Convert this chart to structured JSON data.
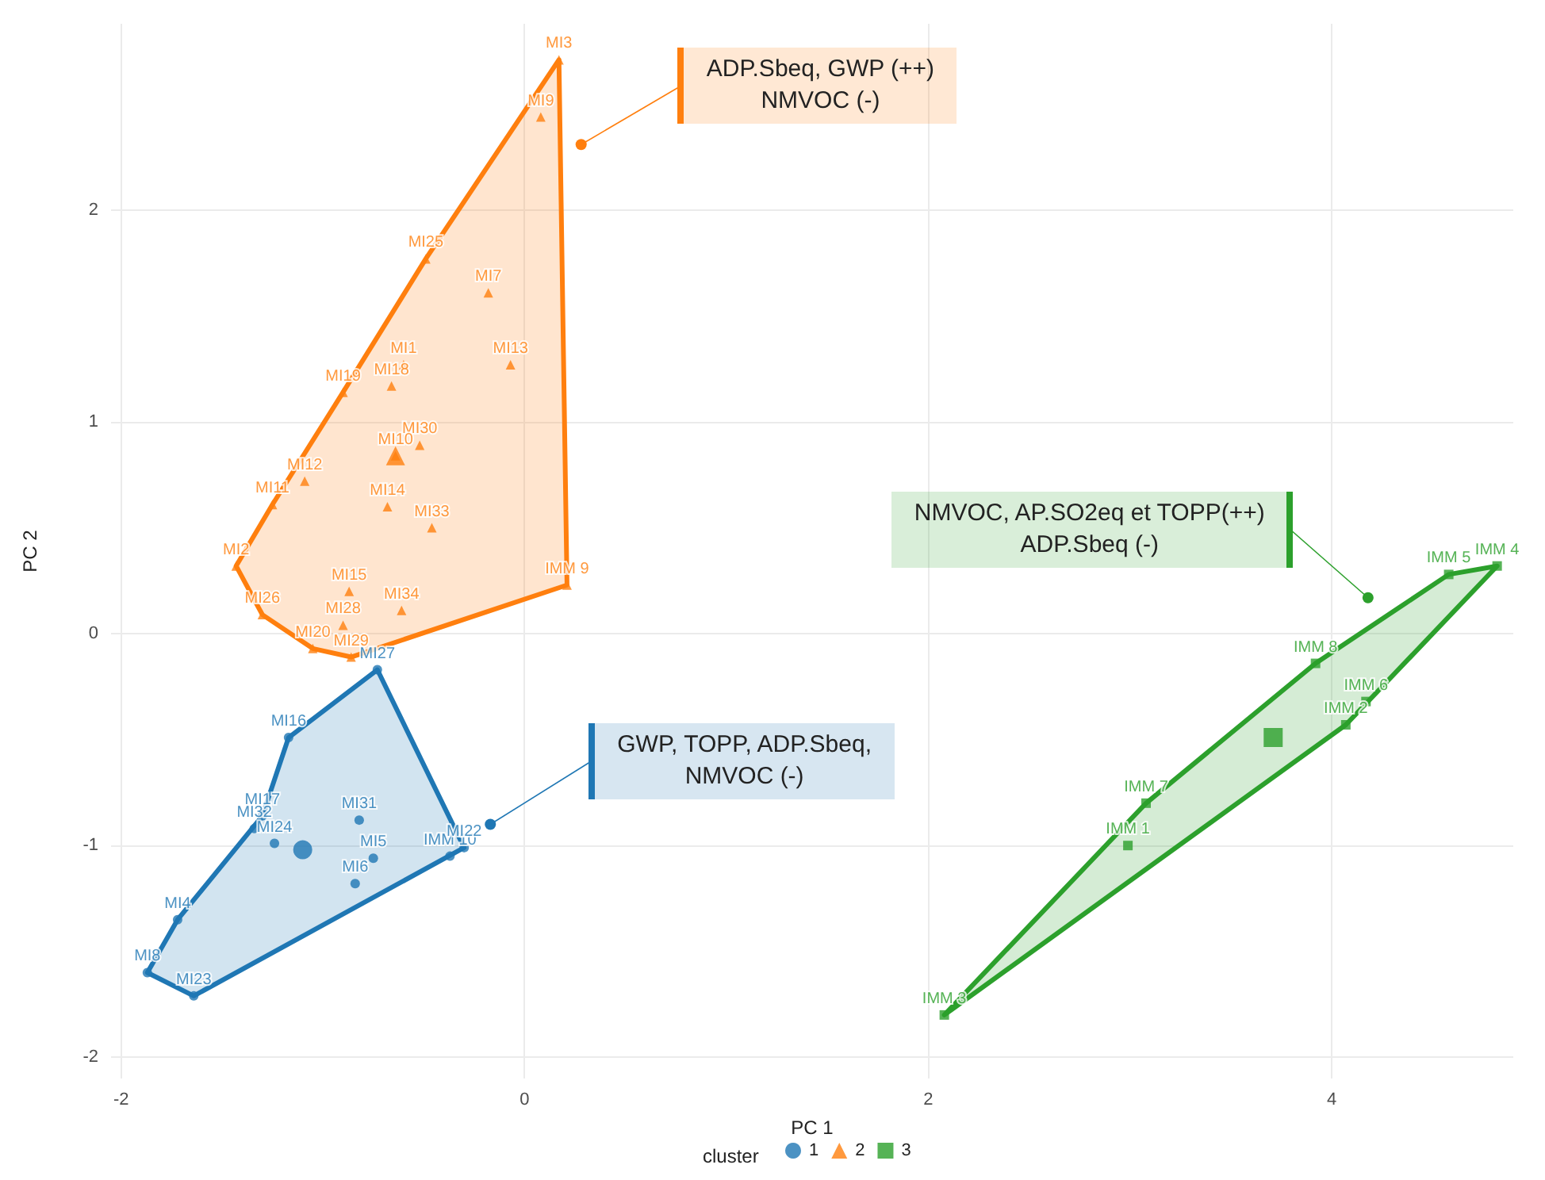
{
  "chart_data": {
    "type": "scatter",
    "xlabel": "PC 1",
    "ylabel": "PC 2",
    "legend_title": "cluster",
    "legend": "bottom",
    "grid": true,
    "xlim": [
      -2.05,
      4.9
    ],
    "ylim": [
      -2.1,
      2.88
    ],
    "xticks": [
      -2,
      0,
      2,
      4
    ],
    "yticks": [
      -2,
      -1,
      0,
      1,
      2
    ],
    "series": [
      {
        "type": "area",
        "color": "#1f77b4",
        "x": [
          -0.73,
          -1.17,
          -1.3,
          -1.72,
          -1.87,
          -1.64,
          -0.3
        ],
        "values": [
          -0.17,
          -0.49,
          -0.86,
          -1.35,
          -1.6,
          -1.71,
          -1.01
        ]
      },
      {
        "type": "area",
        "color": "#ff7f0e",
        "x": [
          0.17,
          -0.49,
          -0.9,
          -1.25,
          -1.43,
          -1.3,
          -1.05,
          -0.86,
          0.21
        ],
        "values": [
          2.71,
          1.77,
          1.14,
          0.61,
          0.32,
          0.09,
          -0.07,
          -0.11,
          0.23
        ]
      },
      {
        "type": "area",
        "color": "#2ca02c",
        "x": [
          4.82,
          4.58,
          3.92,
          3.08,
          2.08,
          4.07
        ],
        "values": [
          0.32,
          0.28,
          -0.14,
          -0.8,
          -1.8,
          -0.43
        ]
      },
      {
        "name": "1",
        "color": "#1f77b4",
        "marker": "circle",
        "x": [
          -0.73,
          -1.17,
          -1.3,
          -1.34,
          -1.24,
          -0.82,
          -0.75,
          -0.84,
          -0.37,
          -0.3,
          -1.72,
          -1.87,
          -1.64
        ],
        "values": [
          -0.17,
          -0.49,
          -0.86,
          -0.92,
          -0.99,
          -0.88,
          -1.06,
          -1.18,
          -1.05,
          -1.01,
          -1.35,
          -1.6,
          -1.71
        ],
        "value_labels": [
          "MI27",
          "MI16",
          "MI17",
          "MI32",
          "MI24",
          "MI31",
          "MI5",
          "MI6",
          "IMM 10",
          "MI22",
          "MI4",
          "MI8",
          "MI23"
        ]
      },
      {
        "name": "2",
        "color": "#ff7f0e",
        "marker": "triangle",
        "x": [
          0.17,
          0.08,
          -0.49,
          -0.18,
          -0.07,
          -0.6,
          -0.66,
          -0.9,
          -0.52,
          -0.64,
          -1.09,
          -1.25,
          -0.68,
          -0.46,
          -1.43,
          0.21,
          -0.87,
          -0.61,
          -1.3,
          -0.9,
          -1.05,
          -0.86
        ],
        "values": [
          2.71,
          2.44,
          1.77,
          1.61,
          1.27,
          1.27,
          1.17,
          1.14,
          0.89,
          0.84,
          0.72,
          0.61,
          0.6,
          0.5,
          0.32,
          0.23,
          0.2,
          0.11,
          0.09,
          0.04,
          -0.07,
          -0.11
        ],
        "value_labels": [
          "MI3",
          "MI9",
          "MI25",
          "MI7",
          "MI13",
          "MI1",
          "MI18",
          "MI19",
          "MI30",
          "MI10",
          "MI12",
          "MI11",
          "MI14",
          "MI33",
          "MI2",
          "IMM 9",
          "MI15",
          "MI34",
          "MI26",
          "MI28",
          "MI20",
          "MI29"
        ]
      },
      {
        "name": "3",
        "color": "#2ca02c",
        "marker": "square",
        "x": [
          4.82,
          4.58,
          3.92,
          4.17,
          4.07,
          3.08,
          2.99,
          2.08
        ],
        "values": [
          0.32,
          0.28,
          -0.14,
          -0.32,
          -0.43,
          -0.8,
          -1.0,
          -1.8
        ],
        "value_labels": [
          "IMM 4",
          "IMM 5",
          "IMM 8",
          "IMM 6",
          "IMM 2",
          "IMM 7",
          "IMM 1",
          "IMM 3"
        ]
      },
      {
        "color": "#1f77b4",
        "marker": "circle",
        "x": [
          -1.1
        ],
        "values": [
          -1.02
        ]
      },
      {
        "color": "#ff7f0e",
        "marker": "triangle",
        "x": [
          -0.64
        ],
        "values": [
          0.84
        ]
      },
      {
        "color": "#2ca02c",
        "marker": "square",
        "x": [
          3.71
        ],
        "values": [
          -0.49
        ]
      }
    ],
    "annotations": [
      {
        "text": "GWP, TOPP, ADP.Sbeq,\nNMVOC (-)",
        "x": -0.17,
        "y": -0.9
      },
      {
        "text": "ADP.Sbeq, GWP (++)\nNMVOC (-)",
        "x": 0.28,
        "y": 2.31
      },
      {
        "text": "NMVOC, AP.SO2eq et TOPP(++)\nADP.Sbeq (-)",
        "x": 4.18,
        "y": 0.17
      }
    ]
  }
}
